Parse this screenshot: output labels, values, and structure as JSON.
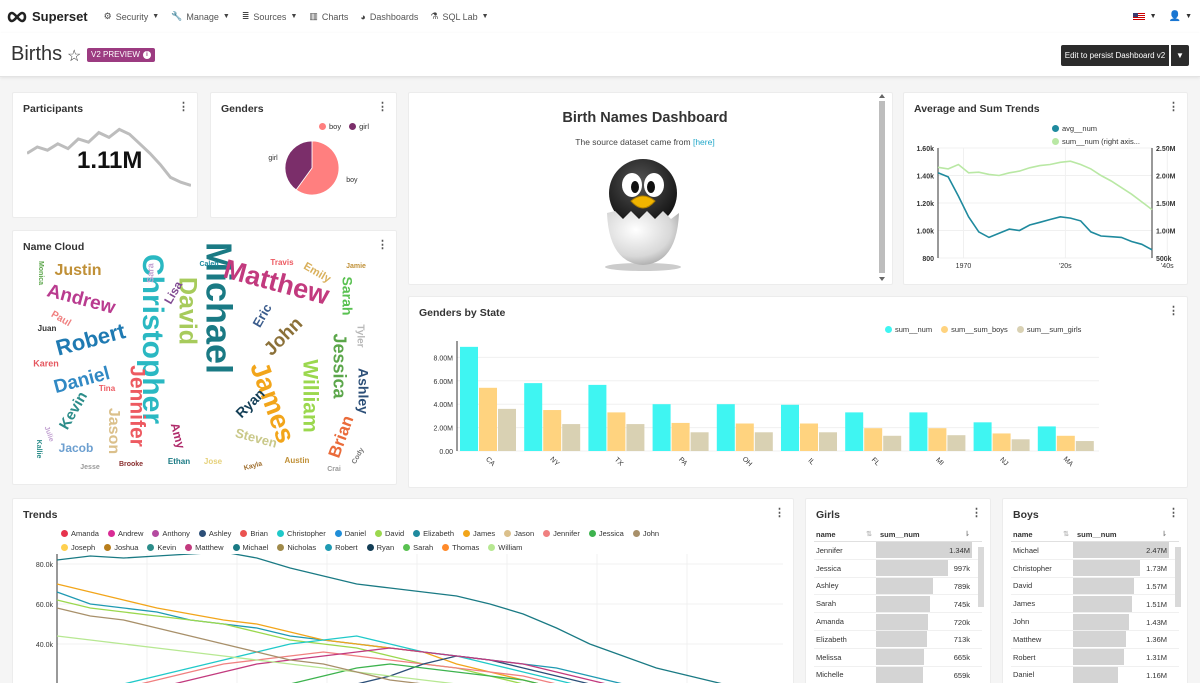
{
  "nav": {
    "brand": "Superset",
    "items": [
      {
        "label": "Security",
        "icon": "gears-icon",
        "glyph": "⚙",
        "caret": true
      },
      {
        "label": "Manage",
        "icon": "wrench-icon",
        "glyph": "🔧",
        "caret": true
      },
      {
        "label": "Sources",
        "icon": "database-icon",
        "glyph": "≣",
        "caret": true
      },
      {
        "label": "Charts",
        "icon": "bar-chart-icon",
        "glyph": "▥",
        "caret": false
      },
      {
        "label": "Dashboards",
        "icon": "dashboard-icon",
        "glyph": "◕",
        "caret": false
      },
      {
        "label": "SQL Lab",
        "icon": "flask-icon",
        "glyph": "⚗",
        "caret": true
      }
    ]
  },
  "header": {
    "title": "Births",
    "badge": "V2 PREVIEW",
    "edit_button": "Edit to persist Dashboard v2"
  },
  "participants": {
    "title": "Participants",
    "value": "1.11M",
    "trend": [
      0.62,
      0.7,
      0.66,
      0.74,
      0.68,
      0.8,
      0.76,
      0.88,
      0.82,
      0.92,
      0.86,
      0.74,
      0.62,
      0.48,
      0.32,
      0.26,
      0.22
    ]
  },
  "genders": {
    "title": "Genders",
    "chart_data": {
      "type": "pie",
      "slices": [
        {
          "label": "boy",
          "value": 60,
          "color": "#ff7f7f"
        },
        {
          "label": "girl",
          "value": 40,
          "color": "#7b2e6a"
        }
      ]
    }
  },
  "markdown": {
    "title": "Birth Names Dashboard",
    "subtitle": "The source dataset came from",
    "link": "[here]"
  },
  "avg_sum": {
    "title": "Average and Sum Trends",
    "chart_data": {
      "type": "line",
      "x": [
        1965,
        1967,
        1969,
        1971,
        1973,
        1975,
        1977,
        1979,
        1981,
        1983,
        1985,
        1987,
        1989,
        1991,
        1993,
        1995,
        1997,
        1999,
        2001,
        2003,
        2005,
        2007
      ],
      "series": [
        {
          "name": "avg__num",
          "color": "#1f8a9e",
          "axis": "left",
          "values": [
            1420,
            1390,
            1250,
            1100,
            990,
            950,
            980,
            1010,
            1000,
            1040,
            1060,
            1080,
            1100,
            1090,
            1070,
            990,
            960,
            955,
            950,
            920,
            900,
            860
          ]
        },
        {
          "name": "sum__num (right axis...",
          "color": "#b9e8a4",
          "axis": "right",
          "values": [
            2.15,
            2.12,
            2.2,
            2.05,
            2.06,
            2.02,
            2.0,
            2.05,
            2.08,
            2.14,
            2.18,
            2.2,
            2.24,
            2.26,
            2.2,
            2.12,
            2.0,
            1.9,
            1.78,
            1.66,
            1.52,
            1.38
          ]
        }
      ],
      "left_ticks": [
        "1.60k",
        "1.40k",
        "1.20k",
        "1.00k",
        "800"
      ],
      "right_ticks": [
        "2.50M",
        "2.00M",
        "1.50M",
        "1.00M",
        "500k"
      ],
      "x_ticks": [
        "1970",
        "'20s",
        "'40s"
      ]
    }
  },
  "name_cloud": {
    "title": "Name Cloud",
    "words": [
      {
        "t": "Michael",
        "x": 215,
        "y": 307,
        "s": 36,
        "c": "#1a7a84",
        "r": 90
      },
      {
        "t": "Christopher",
        "x": 150,
        "y": 338,
        "s": 30,
        "c": "#2ab8c2",
        "r": 90
      },
      {
        "t": "Matthew",
        "x": 275,
        "y": 283,
        "s": 27,
        "c": "#c23a7e",
        "r": 15
      },
      {
        "t": "James",
        "x": 270,
        "y": 402,
        "s": 27,
        "c": "#f2a51a",
        "r": 70
      },
      {
        "t": "David",
        "x": 185,
        "y": 310,
        "s": 25,
        "c": "#a7cb5c",
        "r": 90
      },
      {
        "t": "Robert",
        "x": 90,
        "y": 340,
        "s": 22,
        "c": "#1f7ab2",
        "r": -15
      },
      {
        "t": "Jennifer",
        "x": 135,
        "y": 405,
        "s": 21,
        "c": "#ed5a61",
        "r": 90
      },
      {
        "t": "William",
        "x": 308,
        "y": 395,
        "s": 21,
        "c": "#9bd84e",
        "r": 90
      },
      {
        "t": "Andrew",
        "x": 80,
        "y": 299,
        "s": 19,
        "c": "#b93b8f",
        "r": 15
      },
      {
        "t": "Daniel",
        "x": 81,
        "y": 380,
        "s": 19,
        "c": "#3189c4",
        "r": -15
      },
      {
        "t": "John",
        "x": 283,
        "y": 336,
        "s": 19,
        "c": "#8b7038",
        "r": -45
      },
      {
        "t": "Jessica",
        "x": 337,
        "y": 365,
        "s": 18,
        "c": "#5ba64a",
        "r": 90
      },
      {
        "t": "Brian",
        "x": 341,
        "y": 436,
        "s": 17,
        "c": "#ea6b3a",
        "r": -70
      },
      {
        "t": "Justin",
        "x": 77,
        "y": 270,
        "s": 16,
        "c": "#c09037",
        "r": 0
      },
      {
        "t": "Sarah",
        "x": 345,
        "y": 295,
        "s": 14,
        "c": "#59c151",
        "r": 90
      },
      {
        "t": "Ashley",
        "x": 361,
        "y": 390,
        "s": 14,
        "c": "#2c4f78",
        "r": 90
      },
      {
        "t": "Jason",
        "x": 112,
        "y": 430,
        "s": 16,
        "c": "#dbc08b",
        "r": 90
      },
      {
        "t": "Kevin",
        "x": 73,
        "y": 410,
        "s": 15,
        "c": "#2c8d8a",
        "r": -60
      },
      {
        "t": "Ryan",
        "x": 250,
        "y": 403,
        "s": 14,
        "c": "#133e56",
        "r": -45
      },
      {
        "t": "Steven",
        "x": 255,
        "y": 438,
        "s": 13,
        "c": "#c9c889",
        "r": 15
      },
      {
        "t": "Jacob",
        "x": 75,
        "y": 448,
        "s": 12,
        "c": "#6c9fd0",
        "r": 0
      },
      {
        "t": "Eric",
        "x": 262,
        "y": 315,
        "s": 13,
        "c": "#3b5c8c",
        "r": -60
      },
      {
        "t": "Emily",
        "x": 316,
        "y": 272,
        "s": 11,
        "c": "#d9b05b",
        "r": 30
      },
      {
        "t": "Lisa",
        "x": 173,
        "y": 292,
        "s": 12,
        "c": "#804a92",
        "r": -60
      },
      {
        "t": "Amy",
        "x": 176,
        "y": 435,
        "s": 12,
        "c": "#b02c6b",
        "r": 75
      },
      {
        "t": "Paul",
        "x": 60,
        "y": 318,
        "s": 10,
        "c": "#f08080",
        "r": 30
      },
      {
        "t": "Karen",
        "x": 45,
        "y": 363,
        "s": 9,
        "c": "#e5575f",
        "r": 0
      },
      {
        "t": "Tyler",
        "x": 359,
        "y": 335,
        "s": 10,
        "c": "#b8b8b8",
        "r": 90
      },
      {
        "t": "Sara",
        "x": 150,
        "y": 272,
        "s": 9,
        "c": "#c2a1d1",
        "r": -90
      },
      {
        "t": "Caleb",
        "x": 208,
        "y": 263,
        "s": 7,
        "c": "#1f8a9e",
        "r": 0
      },
      {
        "t": "Travis",
        "x": 281,
        "y": 262,
        "s": 8,
        "c": "#ed5a61",
        "r": 0
      },
      {
        "t": "Jamie",
        "x": 355,
        "y": 265,
        "s": 7,
        "c": "#c09037",
        "r": 0
      },
      {
        "t": "Juan",
        "x": 46,
        "y": 328,
        "s": 8,
        "c": "#333333",
        "r": 0
      },
      {
        "t": "Ethan",
        "x": 178,
        "y": 461,
        "s": 8,
        "c": "#1a7a84",
        "r": 0
      },
      {
        "t": "Jose",
        "x": 212,
        "y": 461,
        "s": 8,
        "c": "#e6d17a",
        "r": 0
      },
      {
        "t": "Kayla",
        "x": 252,
        "y": 465,
        "s": 7,
        "c": "#a07030",
        "r": -15
      },
      {
        "t": "Austin",
        "x": 296,
        "y": 460,
        "s": 8,
        "c": "#c09037",
        "r": 0
      },
      {
        "t": "Crai",
        "x": 333,
        "y": 468,
        "s": 7,
        "c": "#999999",
        "r": 0
      },
      {
        "t": "Cody",
        "x": 357,
        "y": 455,
        "s": 7,
        "c": "#777777",
        "r": -60
      },
      {
        "t": "Brooke",
        "x": 130,
        "y": 463,
        "s": 7,
        "c": "#8a3030",
        "r": 0
      },
      {
        "t": "Julie",
        "x": 48,
        "y": 433,
        "s": 7,
        "c": "#c2a1d1",
        "r": 70
      },
      {
        "t": "Kallie",
        "x": 38,
        "y": 448,
        "s": 7,
        "c": "#2c8d8a",
        "r": 90
      },
      {
        "t": "Monica",
        "x": 40,
        "y": 272,
        "s": 7,
        "c": "#5ba64a",
        "r": 90
      },
      {
        "t": "Tina",
        "x": 106,
        "y": 388,
        "s": 8,
        "c": "#ed5a61",
        "r": 0
      },
      {
        "t": "Jesse",
        "x": 89,
        "y": 466,
        "s": 7,
        "c": "#999999",
        "r": 0
      }
    ]
  },
  "genders_by_state": {
    "title": "Genders by State",
    "chart_data": {
      "type": "bar",
      "categories": [
        "CA",
        "NY",
        "TX",
        "PA",
        "OH",
        "IL",
        "FL",
        "MI",
        "NJ",
        "MA"
      ],
      "series": [
        {
          "name": "sum__num",
          "color": "#3ff5f2",
          "values": [
            8.9,
            5.8,
            5.65,
            4.0,
            4.0,
            3.95,
            3.3,
            3.3,
            2.45,
            2.1
          ]
        },
        {
          "name": "sum__sum_boys",
          "color": "#ffd37f",
          "values": [
            5.4,
            3.5,
            3.3,
            2.4,
            2.35,
            2.35,
            1.95,
            1.95,
            1.5,
            1.3
          ]
        },
        {
          "name": "sum__sum_girls",
          "color": "#d9d1b3",
          "values": [
            3.6,
            2.3,
            2.3,
            1.6,
            1.6,
            1.6,
            1.3,
            1.35,
            1.0,
            0.85
          ]
        }
      ],
      "y_ticks": [
        "0.00",
        "2.00M",
        "4.00M",
        "6.00M",
        "8.00M"
      ],
      "ylim": [
        0,
        9.4
      ]
    }
  },
  "trends": {
    "title": "Trends",
    "legend_rows": [
      [
        [
          "Amanda",
          "#e6334d"
        ],
        [
          "Andrew",
          "#d92b95"
        ],
        [
          "Anthony",
          "#b44aa0"
        ],
        [
          "Ashley",
          "#2c4f78"
        ],
        [
          "Brian",
          "#ea5250"
        ],
        [
          "Christopher",
          "#20c9c9"
        ],
        [
          "Daniel",
          "#1f8ed8"
        ],
        [
          "David",
          "#9bd84e"
        ],
        [
          "Elizabeth",
          "#1f8a9e"
        ],
        [
          "James",
          "#f2a51a"
        ],
        [
          "Jason",
          "#dbc08b"
        ],
        [
          "Jennifer",
          "#f08080"
        ],
        [
          "Jessica",
          "#3db34e"
        ],
        [
          "John",
          "#a8906a"
        ]
      ],
      [
        [
          "Joseph",
          "#ffd04f"
        ],
        [
          "Joshua",
          "#b87e1c"
        ],
        [
          "Kevin",
          "#2c8d8a"
        ],
        [
          "Matthew",
          "#c23a7e"
        ],
        [
          "Michael",
          "#1a7a84"
        ],
        [
          "Nicholas",
          "#a08a4a"
        ],
        [
          "Robert",
          "#1f9ab2"
        ],
        [
          "Ryan",
          "#133e56"
        ],
        [
          "Sarah",
          "#59c151"
        ],
        [
          "Thomas",
          "#ff8a2a"
        ],
        [
          "William",
          "#b7e892"
        ]
      ]
    ],
    "chart_data": {
      "type": "line",
      "y_ticks": [
        "80.0k",
        "60.0k",
        "40.0k"
      ],
      "series": [
        {
          "name": "Michael",
          "color": "#1a7a84",
          "values": [
            82,
            84,
            83,
            84,
            85,
            86,
            83,
            78,
            74,
            70,
            68,
            66,
            64,
            60,
            55,
            48,
            40,
            34,
            28,
            24,
            20
          ]
        },
        {
          "name": "Robert",
          "color": "#1f9ab2",
          "values": [
            66,
            60,
            58,
            56,
            52,
            50,
            48,
            44,
            42,
            40,
            38,
            36,
            34,
            32,
            30,
            28,
            24,
            20,
            16,
            12,
            10
          ]
        },
        {
          "name": "David",
          "color": "#9bd84e",
          "values": [
            62,
            58,
            56,
            54,
            52,
            50,
            46,
            42,
            40,
            38,
            34,
            30,
            28,
            24,
            20,
            16,
            12,
            10,
            8,
            6,
            4
          ]
        },
        {
          "name": "James",
          "color": "#f2a51a",
          "values": [
            70,
            66,
            62,
            58,
            55,
            52,
            50,
            46,
            42,
            40,
            38,
            36,
            30,
            26,
            22,
            18,
            14,
            12,
            10,
            8,
            6
          ]
        },
        {
          "name": "Jennifer",
          "color": "#f08080",
          "values": [
            10,
            14,
            18,
            22,
            26,
            30,
            32,
            34,
            36,
            34,
            32,
            30,
            28,
            26,
            24,
            20,
            16,
            12,
            10,
            8,
            6
          ]
        },
        {
          "name": "Ashley",
          "color": "#2c4f78",
          "values": [
            4,
            4,
            5,
            6,
            8,
            10,
            12,
            14,
            16,
            20,
            24,
            30,
            34,
            32,
            28,
            24,
            20,
            16,
            12,
            8,
            5
          ]
        },
        {
          "name": "Jessica",
          "color": "#3db34e",
          "values": [
            8,
            8,
            10,
            12,
            14,
            16,
            18,
            20,
            24,
            28,
            30,
            28,
            26,
            24,
            22,
            18,
            14,
            12,
            10,
            8,
            6
          ]
        },
        {
          "name": "Christopher",
          "color": "#20c9c9",
          "values": [
            14,
            16,
            20,
            24,
            28,
            32,
            36,
            40,
            42,
            44,
            40,
            36,
            34,
            30,
            26,
            22,
            18,
            14,
            10,
            8,
            6
          ]
        },
        {
          "name": "Matthew",
          "color": "#c23a7e",
          "values": [
            10,
            12,
            14,
            18,
            22,
            26,
            30,
            32,
            34,
            36,
            38,
            36,
            34,
            32,
            30,
            26,
            22,
            18,
            14,
            10,
            8
          ]
        },
        {
          "name": "William",
          "color": "#b7e892",
          "values": [
            44,
            42,
            40,
            38,
            36,
            34,
            32,
            30,
            28,
            26,
            24,
            22,
            20,
            18,
            16,
            14,
            12,
            10,
            8,
            6,
            5
          ]
        },
        {
          "name": "John",
          "color": "#a8906a",
          "values": [
            58,
            54,
            52,
            48,
            44,
            40,
            36,
            32,
            30,
            26,
            22,
            20,
            18,
            16,
            14,
            12,
            10,
            8,
            6,
            5,
            4
          ]
        }
      ]
    }
  },
  "girls": {
    "title": "Girls",
    "col_name": "name",
    "col_val": "sum__num",
    "rows": [
      {
        "name": "Jennifer",
        "val": "1.34M",
        "frac": 1.0
      },
      {
        "name": "Jessica",
        "val": "997k",
        "frac": 0.75
      },
      {
        "name": "Ashley",
        "val": "789k",
        "frac": 0.59
      },
      {
        "name": "Sarah",
        "val": "745k",
        "frac": 0.56
      },
      {
        "name": "Amanda",
        "val": "720k",
        "frac": 0.54
      },
      {
        "name": "Elizabeth",
        "val": "713k",
        "frac": 0.53
      },
      {
        "name": "Melissa",
        "val": "665k",
        "frac": 0.5
      },
      {
        "name": "Michelle",
        "val": "659k",
        "frac": 0.49
      }
    ]
  },
  "boys": {
    "title": "Boys",
    "col_name": "name",
    "col_val": "sum__num",
    "rows": [
      {
        "name": "Michael",
        "val": "2.47M",
        "frac": 1.0
      },
      {
        "name": "Christopher",
        "val": "1.73M",
        "frac": 0.7
      },
      {
        "name": "David",
        "val": "1.57M",
        "frac": 0.64
      },
      {
        "name": "James",
        "val": "1.51M",
        "frac": 0.61
      },
      {
        "name": "John",
        "val": "1.43M",
        "frac": 0.58
      },
      {
        "name": "Matthew",
        "val": "1.36M",
        "frac": 0.55
      },
      {
        "name": "Robert",
        "val": "1.31M",
        "frac": 0.53
      },
      {
        "name": "Daniel",
        "val": "1.16M",
        "frac": 0.47
      }
    ]
  }
}
